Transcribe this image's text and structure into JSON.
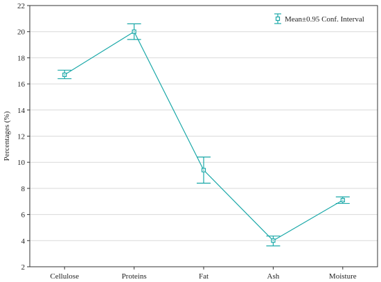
{
  "chart_data": {
    "type": "line",
    "categories": [
      "Cellulose",
      "Proteins",
      "Fat",
      "Ash",
      "Moisture"
    ],
    "series": [
      {
        "name": "Mean±0.95 Conf. Interval",
        "values": [
          16.7,
          20.0,
          9.4,
          4.0,
          7.1
        ],
        "ci_lower": [
          16.4,
          19.4,
          8.4,
          3.6,
          6.85
        ],
        "ci_upper": [
          17.05,
          20.6,
          10.4,
          4.35,
          7.35
        ],
        "color": "#1aa8a8"
      }
    ],
    "title": "",
    "xlabel": "",
    "ylabel": "Percentages (%)",
    "ylim": [
      2,
      22
    ],
    "yticks": [
      2,
      4,
      6,
      8,
      10,
      12,
      14,
      16,
      18,
      20,
      22
    ],
    "grid": true,
    "legend_position": "top-right"
  }
}
